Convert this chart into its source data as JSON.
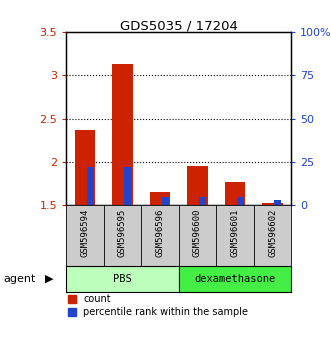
{
  "title": "GDS5035 / 17204",
  "samples": [
    "GSM596594",
    "GSM596595",
    "GSM596596",
    "GSM596600",
    "GSM596601",
    "GSM596602"
  ],
  "count_values": [
    2.37,
    3.13,
    1.65,
    1.95,
    1.77,
    1.53
  ],
  "percentile_values": [
    22,
    22,
    5,
    5,
    5,
    3
  ],
  "ylim_left": [
    1.5,
    3.5
  ],
  "ylim_right": [
    0,
    100
  ],
  "yticks_left": [
    1.5,
    2.0,
    2.5,
    3.0,
    3.5
  ],
  "ytick_labels_left": [
    "1.5",
    "2",
    "2.5",
    "3",
    "3.5"
  ],
  "yticks_right": [
    0,
    25,
    50,
    75,
    100
  ],
  "ytick_labels_right": [
    "0",
    "25",
    "50",
    "75",
    "100%"
  ],
  "groups": [
    {
      "label": "PBS",
      "indices": [
        0,
        1,
        2
      ],
      "color": "#bbffbb"
    },
    {
      "label": "dexamethasone",
      "indices": [
        3,
        4,
        5
      ],
      "color": "#44ee44"
    }
  ],
  "bar_color_count": "#cc2200",
  "bar_color_pct": "#2244cc",
  "base_value": 1.5,
  "agent_label": "agent",
  "legend_count": "count",
  "legend_pct": "percentile rank within the sample",
  "background_color": "#ffffff",
  "sample_box_color": "#cccccc",
  "grid_dotted_color": "black"
}
